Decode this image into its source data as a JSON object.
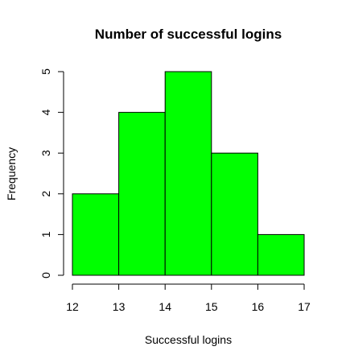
{
  "chart_data": {
    "type": "bar",
    "title": "Number of successful logins",
    "xlabel": "Successful logins",
    "ylabel": "Frequency",
    "bins": [
      {
        "start": 12,
        "end": 13,
        "count": 2
      },
      {
        "start": 13,
        "end": 14,
        "count": 4
      },
      {
        "start": 14,
        "end": 15,
        "count": 5
      },
      {
        "start": 15,
        "end": 16,
        "count": 3
      },
      {
        "start": 16,
        "end": 17,
        "count": 1
      }
    ],
    "x_ticks": [
      "12",
      "13",
      "14",
      "15",
      "16",
      "17"
    ],
    "y_ticks": [
      "0",
      "1",
      "2",
      "3",
      "4",
      "5"
    ],
    "xlim": [
      12,
      17
    ],
    "ylim": [
      0,
      5
    ],
    "bar_color": "#00ff00",
    "border_color": "#000000",
    "grid": false,
    "legend": "none"
  }
}
